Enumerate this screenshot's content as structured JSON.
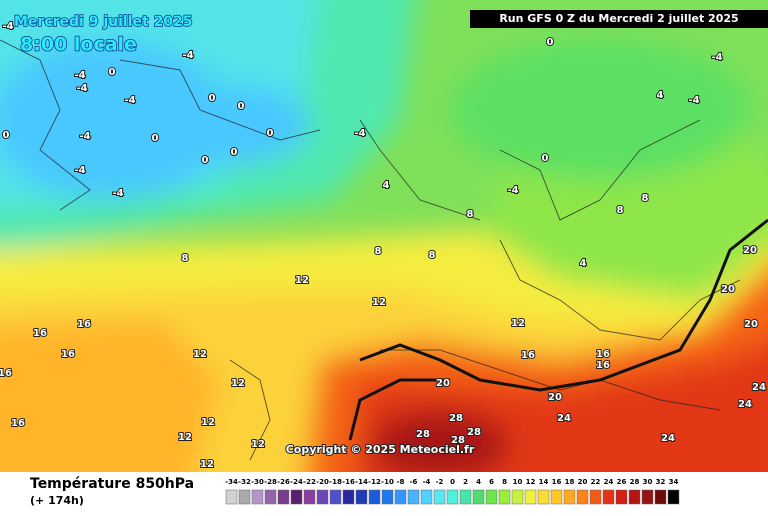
{
  "header": {
    "date": "Mercredi 9 juillet 2025",
    "time": "8:00 locale",
    "run": "Run GFS 0 Z du Mercredi 2 juillet 2025"
  },
  "map": {
    "contour_labels": [
      -4,
      -4,
      -4,
      -4,
      -4,
      -4,
      -4,
      -4,
      -4,
      -4,
      -4,
      -4,
      0,
      0,
      0,
      0,
      0,
      0,
      0,
      0,
      0,
      0,
      4,
      4,
      4,
      8,
      8,
      8,
      8,
      8,
      8,
      12,
      12,
      12,
      12,
      12,
      12,
      12,
      12,
      12,
      16,
      16,
      16,
      16,
      16,
      16,
      16,
      16,
      20,
      20,
      20,
      20,
      20,
      24,
      24,
      24,
      24,
      28,
      28,
      28,
      28
    ],
    "copyright": "Copyright © 2025 Meteociel.fr"
  },
  "footer": {
    "title": "Température 850hPa",
    "lead": "(+ 174h)"
  },
  "legend": {
    "ticks": [
      -34,
      -32,
      -30,
      -28,
      -26,
      -24,
      -22,
      -20,
      -18,
      -16,
      -14,
      -12,
      -10,
      -8,
      -6,
      -4,
      -2,
      0,
      2,
      4,
      6,
      8,
      10,
      12,
      14,
      16,
      18,
      20,
      22,
      24,
      26,
      28,
      30,
      32,
      34
    ],
    "colors": [
      "#d2d2d2",
      "#aaaaaa",
      "#b496c8",
      "#9664aa",
      "#783c8c",
      "#5a1e6e",
      "#8c3ca0",
      "#6e46b4",
      "#5050c8",
      "#2828a0",
      "#1e3cb4",
      "#1e5adc",
      "#1e78f0",
      "#3296ff",
      "#46b4ff",
      "#50d2ff",
      "#5ae6f0",
      "#50f0dc",
      "#46e6aa",
      "#50dc6e",
      "#6ee650",
      "#96f03c",
      "#c8f03c",
      "#f0f03c",
      "#fadc32",
      "#ffc828",
      "#ffaa1e",
      "#ff8214",
      "#f55a14",
      "#e63214",
      "#d21e14",
      "#b41414",
      "#961414",
      "#6e0a0a",
      "#000000"
    ]
  }
}
